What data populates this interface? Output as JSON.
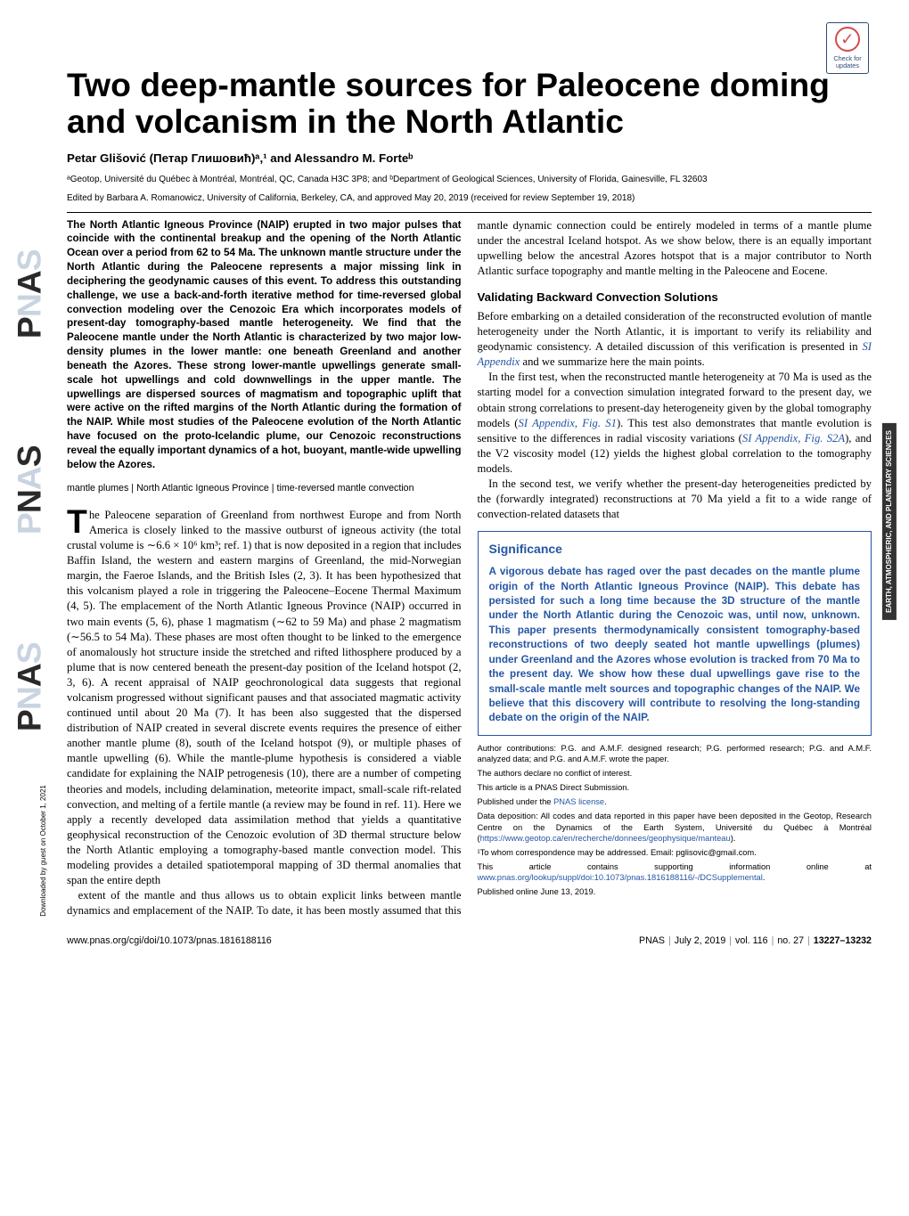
{
  "updates_badge": {
    "label": "Check for\nupdates"
  },
  "category": "EARTH, ATMOSPHERIC,\nAND PLANETARY SCIENCES",
  "title": "Two deep-mantle sources for Paleocene doming and volcanism in the North Atlantic",
  "authors": "Petar Glišović (Петар Глишовић)ᵃ,¹ and Alessandro M. Forteᵇ",
  "affiliations": "ᵃGeotop, Université du Québec à Montréal, Montréal, QC, Canada H3C 3P8; and ᵇDepartment of Geological Sciences, University of Florida, Gainesville, FL 32603",
  "edited": "Edited by Barbara A. Romanowicz, University of California, Berkeley, CA, and approved May 20, 2019 (received for review September 19, 2018)",
  "abstract": "The North Atlantic Igneous Province (NAIP) erupted in two major pulses that coincide with the continental breakup and the opening of the North Atlantic Ocean over a period from 62 to 54 Ma. The unknown mantle structure under the North Atlantic during the Paleocene represents a major missing link in deciphering the geodynamic causes of this event. To address this outstanding challenge, we use a back-and-forth iterative method for time-reversed global convection modeling over the Cenozoic Era which incorporates models of present-day tomography-based mantle heterogeneity. We find that the Paleocene mantle under the North Atlantic is characterized by two major low-density plumes in the lower mantle: one beneath Greenland and another beneath the Azores. These strong lower-mantle upwellings generate small-scale hot upwellings and cold downwellings in the upper mantle. The upwellings are dispersed sources of magmatism and topographic uplift that were active on the rifted margins of the North Atlantic during the formation of the NAIP. While most studies of the Paleocene evolution of the North Atlantic have focused on the proto-Icelandic plume, our Cenozoic reconstructions reveal the equally important dynamics of a hot, buoyant, mantle-wide upwelling below the Azores.",
  "keywords": [
    "mantle plumes",
    "North Atlantic Igneous Province",
    "time-reversed mantle convection"
  ],
  "body": {
    "p1_dropcap": "T",
    "p1": "he Paleocene separation of Greenland from northwest Europe and from North America is closely linked to the massive outburst of igneous activity (the total crustal volume is ∼6.6 × 10⁶ km³; ref. 1) that is now deposited in a region that includes Baffin Island, the western and eastern margins of Greenland, the mid-Norwegian margin, the Faeroe Islands, and the British Isles (2, 3). It has been hypothesized that this volcanism played a role in triggering the Paleocene–Eocene Thermal Maximum (4, 5). The emplacement of the North Atlantic Igneous Province (NAIP) occurred in two main events (5, 6), phase 1 magmatism (∼62 to 59 Ma) and phase 2 magmatism (∼56.5 to 54 Ma). These phases are most often thought to be linked to the emergence of anomalously hot structure inside the stretched and rifted lithosphere produced by a plume that is now centered beneath the present-day position of the Iceland hotspot (2, 3, 6). A recent appraisal of NAIP geochronological data suggests that regional volcanism progressed without significant pauses and that associated magmatic activity continued until about 20 Ma (7). It has been also suggested that the dispersed distribution of NAIP created in several discrete events requires the presence of either another mantle plume (8), south of the Iceland hotspot (9), or multiple phases of mantle upwelling (6). While the mantle-plume hypothesis is considered a viable candidate for explaining the NAIP petrogenesis (10), there are a number of competing theories and models, including delamination, meteorite impact, small-scale rift-related convection, and melting of a fertile mantle (a review may be found in ref. 11). Here we apply a recently developed data assimilation method that yields a quantitative geophysical reconstruction of the Cenozoic evolution of 3D thermal structure below the North Atlantic employing a tomography-based mantle convection model. This modeling provides a detailed spatiotemporal mapping of 3D thermal anomalies that span the entire depth",
    "p2": "extent of the mantle and thus allows us to obtain explicit links between mantle dynamics and emplacement of the NAIP. To date, it has been mostly assumed that this mantle dynamic connection could be entirely modeled in terms of a mantle plume under the ancestral Iceland hotspot. As we show below, there is an equally important upwelling below the ancestral Azores hotspot that is a major contributor to North Atlantic surface topography and mantle melting in the Paleocene and Eocene.",
    "h2_1": "Validating Backward Convection Solutions",
    "p3a": "Before embarking on a detailed consideration of the reconstructed evolution of mantle heterogeneity under the North Atlantic, it is important to verify its reliability and geodynamic consistency. A detailed discussion of this verification is presented in ",
    "p3_link": "SI Appendix",
    "p3b": " and we summarize here the main points.",
    "p4a": "In the first test, when the reconstructed mantle heterogeneity at 70 Ma is used as the starting model for a convection simulation integrated forward to the present day, we obtain strong correlations to present-day heterogeneity given by the global tomography models (",
    "p4_link1": "SI Appendix",
    "p4_link1b": ", Fig. S1",
    "p4b": "). This test also demonstrates that mantle evolution is sensitive to the differences in radial viscosity variations (",
    "p4_link2": "SI Appendix",
    "p4_link2b": ", Fig. S2A",
    "p4c": "), and the V2 viscosity model (12) yields the highest global correlation to the tomography models.",
    "p5": "In the second test, we verify whether the present-day heterogeneities predicted by the (forwardly integrated) reconstructions at 70 Ma yield a fit to a wide range of convection-related datasets that"
  },
  "significance": {
    "heading": "Significance",
    "text": "A vigorous debate has raged over the past decades on the mantle plume origin of the North Atlantic Igneous Province (NAIP). This debate has persisted for such a long time because the 3D structure of the mantle under the North Atlantic during the Cenozoic was, until now, unknown. This paper presents thermodynamically consistent tomography-based reconstructions of two deeply seated hot mantle upwellings (plumes) under Greenland and the Azores whose evolution is tracked from 70 Ma to the present day. We show how these dual upwellings gave rise to the small-scale mantle melt sources and topographic changes of the NAIP. We believe that this discovery will contribute to resolving the long-standing debate on the origin of the NAIP."
  },
  "footnotes": {
    "contrib": "Author contributions: P.G. and A.M.F. designed research; P.G. performed research; P.G. and A.M.F. analyzed data; and P.G. and A.M.F. wrote the paper.",
    "conflict": "The authors declare no conflict of interest.",
    "direct": "This article is a PNAS Direct Submission.",
    "license_a": "Published under the ",
    "license_link": "PNAS license",
    "license_b": ".",
    "data_a": "Data deposition: All codes and data reported in this paper have been deposited in the Geotop, Research Centre on the Dynamics of the Earth System, Université du Québec à Montréal (",
    "data_link": "https://www.geotop.ca/en/recherche/donnees/geophysique/manteau",
    "data_b": ").",
    "corr": "¹To whom correspondence may be addressed. Email: pglisovic@gmail.com.",
    "supp_a": "This article contains supporting information online at ",
    "supp_link": "www.pnas.org/lookup/suppl/doi:10.1073/pnas.1816188116/-/DCSupplemental",
    "supp_b": ".",
    "pub": "Published online June 13, 2019."
  },
  "footer": {
    "doi": "www.pnas.org/cgi/doi/10.1073/pnas.1816188116",
    "journal": "PNAS",
    "date": "July 2, 2019",
    "vol": "vol. 116",
    "no": "no. 27",
    "pages": "13227–13232"
  },
  "downloaded": "Downloaded by guest on October 1, 2021",
  "pnas_text": "PNAS"
}
